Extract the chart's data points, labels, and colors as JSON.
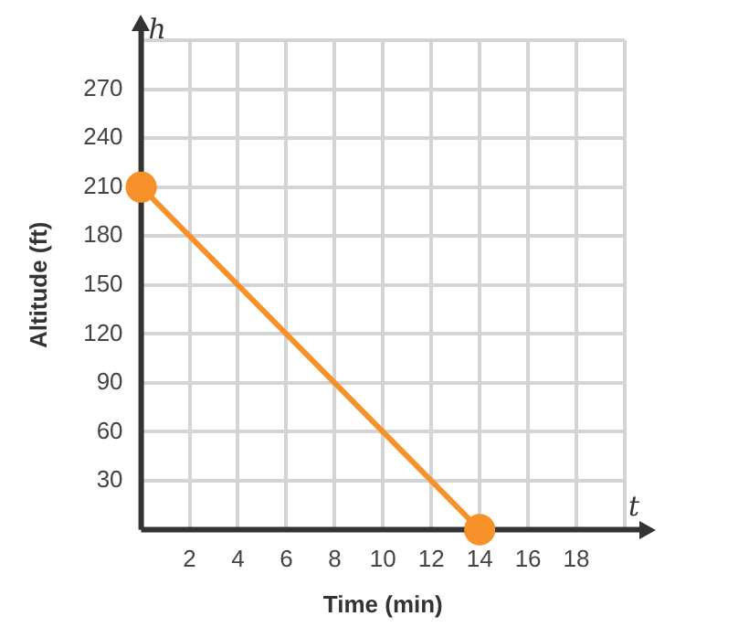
{
  "chart_data": {
    "type": "line",
    "xlabel": "Time (min)",
    "ylabel": "Altitude (ft)",
    "x": [
      0,
      14
    ],
    "series": [
      {
        "color": "#f7922a",
        "values": [
          210,
          0
        ]
      }
    ],
    "xlim": [
      0,
      20
    ],
    "xticks": [
      {
        "value": 0,
        "label": null
      },
      2,
      4,
      6,
      8,
      10,
      12,
      14,
      16,
      18,
      {
        "value": 20,
        "label": null
      }
    ],
    "ylim": [
      0,
      300
    ],
    "yticks": [
      {
        "value": 0,
        "label": null
      },
      30,
      60,
      90,
      120,
      150,
      180,
      210,
      240,
      270,
      {
        "value": 300,
        "label": null
      }
    ],
    "grid": true,
    "legend": false,
    "marker": "circle",
    "line_style": "solid",
    "annotations": [
      "h",
      "t"
    ]
  }
}
